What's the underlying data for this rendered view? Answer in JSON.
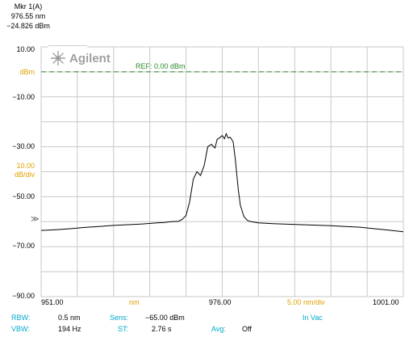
{
  "marker": {
    "line1": "Mkr 1(A)",
    "line2": "976.55 nm",
    "line3": "−24.826 dBm"
  },
  "logo_text": "Agilent",
  "ref_label": "REF: 0.00 dBm",
  "ref_arrow_glyph": "≫",
  "y_labels": {
    "top": "10.00",
    "unit": "dBm",
    "m10": "−10.00",
    "m30": "−30.00",
    "scale_value": "10.00",
    "scale_unit": "dB/div",
    "m50": "−50.00",
    "m70": "−70.00",
    "m90": "−90.00"
  },
  "x_labels": {
    "start": "951.00",
    "unit": "nm",
    "center": "976.00",
    "span_div": "5.00 nm/div",
    "stop": "1001.00"
  },
  "settings": {
    "rbw_label": "RBW:",
    "rbw_value": "0.5 nm",
    "sens_label": "Sens:",
    "sens_value": "−65.00 dBm",
    "medium": "In Vac",
    "vbw_label": "VBW:",
    "vbw_value": "194 Hz",
    "st_label": "ST:",
    "st_value": "2.76 s",
    "avg_label": "Avg:",
    "avg_value": "Off"
  },
  "colors": {
    "trace": "#000000",
    "grid": "#c8c8c8",
    "ref_line": "#2d8a2d",
    "orange": "#e0a000",
    "cyan": "#00aacc"
  },
  "chart_data": {
    "type": "line",
    "title": "",
    "xlabel": "nm",
    "ylabel": "dBm",
    "xlim": [
      951,
      1001
    ],
    "ylim": [
      -90,
      10
    ],
    "ref_level": 0,
    "grid": true,
    "x_divisions": 10,
    "y_divisions": 10,
    "series": [
      {
        "values_note": "",
        "x": [
          951,
          953,
          955,
          957,
          959,
          961,
          963,
          965,
          967,
          968,
          969,
          970,
          970.5,
          971,
          971.5,
          972,
          972.5,
          973,
          973.5,
          974,
          974.5,
          975,
          975.3,
          975.6,
          976,
          976.3,
          976.55,
          976.8,
          977.1,
          977.5,
          977.8,
          978.2,
          978.5,
          979,
          979.5,
          980,
          981,
          983,
          985,
          987,
          989,
          991,
          993,
          995,
          997,
          999,
          1001
        ],
        "y": [
          -63.5,
          -63.2,
          -62.8,
          -62.3,
          -61.9,
          -61.5,
          -61.2,
          -60.9,
          -60.5,
          -60.3,
          -60.0,
          -59.8,
          -59.0,
          -57.5,
          -52.0,
          -43.0,
          -40.0,
          -41.5,
          -37.5,
          -30.0,
          -29.0,
          -30.5,
          -27.0,
          -26.5,
          -25.5,
          -26.8,
          -24.8,
          -26.5,
          -26.2,
          -28.0,
          -35.0,
          -47.0,
          -53.5,
          -58.0,
          -59.5,
          -60.0,
          -60.5,
          -60.8,
          -61.0,
          -61.2,
          -61.4,
          -61.6,
          -61.9,
          -62.2,
          -62.8,
          -63.4,
          -64.0
        ]
      }
    ]
  }
}
